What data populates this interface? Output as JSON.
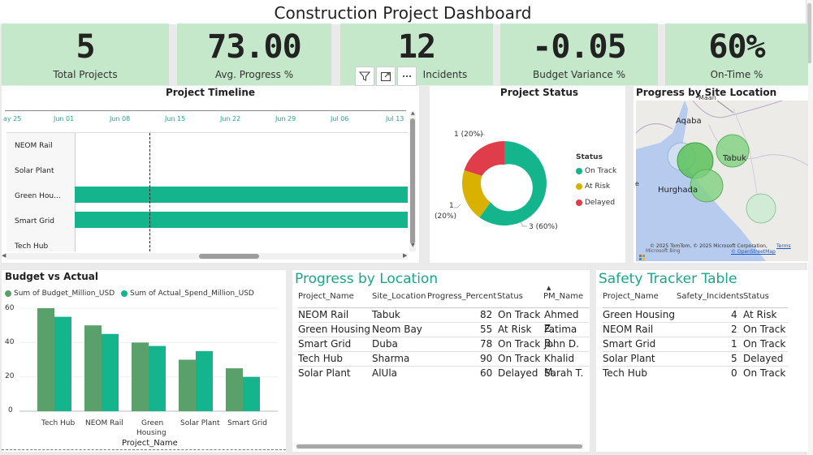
{
  "dashboard_title": "Construction Project Dashboard",
  "kpis": [
    {
      "value": "5",
      "label": "Total Projects"
    },
    {
      "value": "73.00",
      "label": "Avg. Progress %"
    },
    {
      "value": "12",
      "label": "Incidents"
    },
    {
      "value": "-0.05",
      "label": "Budget Variance %"
    },
    {
      "value": "60%",
      "label": "On-Time %"
    }
  ],
  "timeline": {
    "title": "Project Timeline",
    "ticks": [
      "ay 25",
      "Jun 01",
      "Jun 08",
      "Jun 15",
      "Jun 22",
      "Jun 29",
      "Jul 06",
      "Jul 13"
    ],
    "rows": [
      "NEOM Rail",
      "Solar Plant",
      "Green Hou...",
      "Smart Grid",
      "Tech Hub"
    ]
  },
  "status": {
    "title": "Project Status",
    "legend_title": "Status",
    "slices": [
      {
        "label": "On Track",
        "count": 3,
        "pct": "60%",
        "color": "#14b48d",
        "data_label": "3 (60%)"
      },
      {
        "label": "At Risk",
        "count": 1,
        "pct": "20%",
        "color": "#d9b100",
        "data_label": "1 (20%)"
      },
      {
        "label": "Delayed",
        "count": 1,
        "pct": "20%",
        "color": "#df3d4a",
        "data_label": "1 (20%)"
      }
    ],
    "label_delayed": "1 (20%)",
    "label_atrisk_count": "1",
    "label_atrisk_pct": "(20%)",
    "label_ontrack": "3 (60%)"
  },
  "map": {
    "title": "Progress by Site Location",
    "places": [
      "Aqaba",
      "Tabuk",
      "Hurghada",
      "Maan"
    ],
    "attribution": "© 2025 TomTom, © 2025 Microsoft Corporation,",
    "terms": "Terms",
    "osm": "© OpenStreetMap",
    "ms_bing": "Microsoft Bing"
  },
  "budget": {
    "title": "Budget vs Actual",
    "legend_budget": "Sum of Budget_Million_USD",
    "legend_actual": "Sum of Actual_Spend_Million_USD",
    "xlabel": "Project_Name",
    "cat_green_1": "Green",
    "cat_green_2": "Housing",
    "y_ticks": [
      "60",
      "40",
      "20",
      "0"
    ]
  },
  "chart_data": {
    "type": "bar",
    "title": "Budget vs Actual",
    "categories": [
      "Tech Hub",
      "NEOM Rail",
      "Green Housing",
      "Solar Plant",
      "Smart Grid"
    ],
    "series": [
      {
        "name": "Sum of Budget_Million_USD",
        "color": "#5aa06a",
        "values": [
          60,
          50,
          40,
          30,
          25
        ]
      },
      {
        "name": "Sum of Actual_Spend_Million_USD",
        "color": "#14b48d",
        "values": [
          55,
          45,
          38,
          35,
          20
        ]
      }
    ],
    "xlabel": "Project_Name",
    "ylabel": "",
    "ylim": [
      0,
      65
    ]
  },
  "progress_table": {
    "title": "Progress by Location",
    "headers": [
      "Project_Name",
      "Site_Location",
      "Progress_Percent",
      "Status",
      "PM_Name"
    ],
    "rows": [
      [
        "NEOM Rail",
        "Tabuk",
        "82",
        "On Track",
        "Ahmed Z."
      ],
      [
        "Green Housing",
        "Neom Bay",
        "55",
        "At Risk",
        "Fatima B."
      ],
      [
        "Smart Grid",
        "Duba",
        "78",
        "On Track",
        "John D."
      ],
      [
        "Tech Hub",
        "Sharma",
        "90",
        "On Track",
        "Khalid M."
      ],
      [
        "Solar Plant",
        "AlUla",
        "60",
        "Delayed",
        "Sarah T."
      ]
    ]
  },
  "safety_table": {
    "title": "Safety Tracker Table",
    "headers": [
      "Project_Name",
      "Safety_Incidents",
      "Status"
    ],
    "rows": [
      [
        "Green Housing",
        "4",
        "At Risk"
      ],
      [
        "NEOM Rail",
        "2",
        "On Track"
      ],
      [
        "Smart Grid",
        "1",
        "On Track"
      ],
      [
        "Solar Plant",
        "5",
        "Delayed"
      ],
      [
        "Tech Hub",
        "0",
        "On Track"
      ]
    ]
  }
}
